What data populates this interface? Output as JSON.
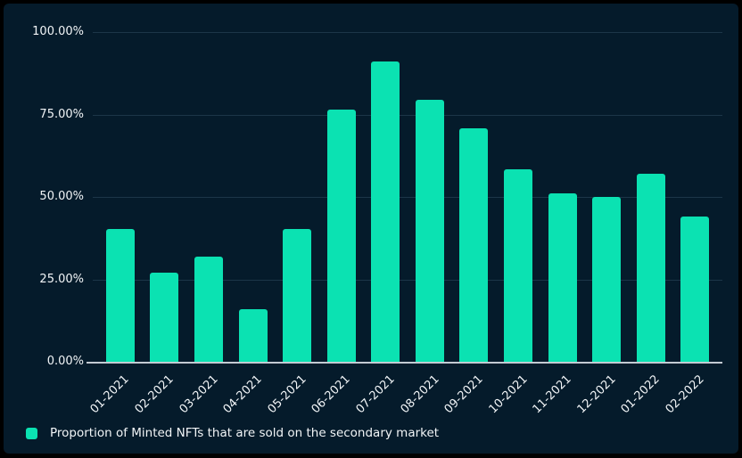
{
  "panel": {
    "background_color": "#051b2b",
    "frame_color": "#000000"
  },
  "chart_data": {
    "type": "bar",
    "title": "",
    "xlabel": "",
    "ylabel": "",
    "categories": [
      "01-2021",
      "02-2021",
      "03-2021",
      "04-2021",
      "05-2021",
      "06-2021",
      "07-2021",
      "08-2021",
      "09-2021",
      "10-2021",
      "11-2021",
      "12-2021",
      "01-2022",
      "02-2022"
    ],
    "values": [
      40.2,
      27.0,
      32.0,
      15.9,
      40.2,
      76.6,
      91.2,
      79.5,
      70.9,
      58.4,
      51.0,
      50.1,
      57.0,
      44.0
    ],
    "series_name": "Proportion of Minted NFTs that are sold on the secondary market",
    "ylim": [
      0,
      100
    ],
    "y_ticks": [
      {
        "value": 100,
        "label": "100.00%"
      },
      {
        "value": 75,
        "label": "75.00%"
      },
      {
        "value": 50,
        "label": "50.00%"
      },
      {
        "value": 25,
        "label": "25.00%"
      },
      {
        "value": 0,
        "label": "0.00%"
      }
    ],
    "grid": "horizontal-only",
    "legend_position": "bottom-left",
    "x_tick_rotation_deg": -45,
    "bar_color": "#0be2b2",
    "axis_line_color": "#c3cbd3",
    "gridline_color": "rgba(151,196,226,0.16)",
    "text_color": "#f2f5f7"
  },
  "legend": {
    "label": "Proportion of Minted NFTs that are sold on the secondary market",
    "swatch_color": "#0be2b2"
  }
}
